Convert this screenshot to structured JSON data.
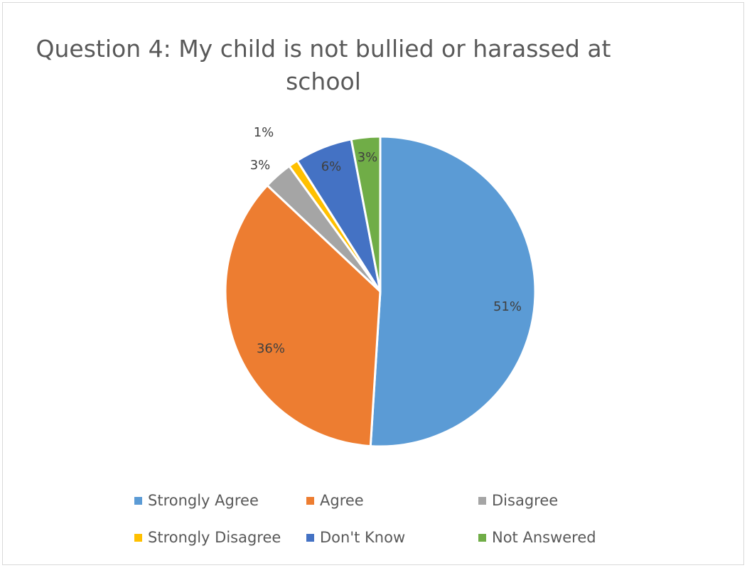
{
  "chart_data": {
    "type": "pie",
    "title": "Question 4: My child is not bullied or harassed at school",
    "categories": [
      "Strongly Agree",
      "Agree",
      "Disagree",
      "Strongly Disagree",
      "Don't Know",
      "Not Answered"
    ],
    "values": [
      51,
      36,
      3,
      1,
      6,
      3
    ],
    "data_labels": [
      "51%",
      "36%",
      "3%",
      "1%",
      "6%",
      "3%"
    ],
    "colors": [
      "#5b9bd5",
      "#ed7d31",
      "#a5a5a5",
      "#ffc000",
      "#4472c4",
      "#70ad47"
    ],
    "legend": {
      "position": "bottom",
      "entries": [
        "Strongly Agree",
        "Agree",
        "Disagree",
        "Strongly Disagree",
        "Don't Know",
        "Not Answered"
      ]
    }
  }
}
